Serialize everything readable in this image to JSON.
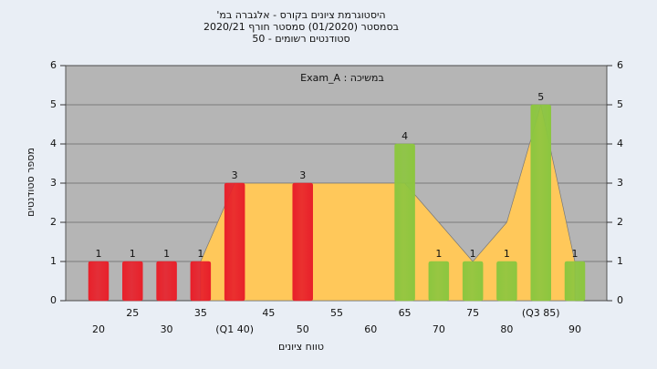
{
  "chart_data": {
    "type": "bar",
    "title": "היסטוגרמת ציונים בקורס - אלגברה במ'",
    "subtitle": "בסמסטר (01/2020) סמסטר חורף 2020/21",
    "subtitle2": "סטודנטים רשומים - 50",
    "annotation": "במשיכה : Exam_A",
    "x_label": "טווח ציונים",
    "y_label": "מספר סטודנטים",
    "categories": [
      "20",
      "25",
      "30",
      "35",
      "(Q1 40)",
      "45",
      "50",
      "55",
      "60",
      "65",
      "70",
      "75",
      "80",
      "(Q3 85)",
      "90"
    ],
    "values": [
      1,
      1,
      1,
      1,
      3,
      0,
      3,
      0,
      0,
      4,
      1,
      1,
      1,
      5,
      1
    ],
    "colors": [
      "#e8202a",
      "#e8202a",
      "#e8202a",
      "#e8202a",
      "#e8202a",
      "#e8202a",
      "#e8202a",
      "#e8202a",
      "#e8202a",
      "#8cc63f",
      "#8cc63f",
      "#8cc63f",
      "#8cc63f",
      "#8cc63f",
      "#8cc63f"
    ],
    "area": {
      "color": "#ffc85a",
      "values": [
        null,
        null,
        null,
        1,
        3,
        3,
        3,
        3,
        3,
        3,
        2,
        1,
        2,
        5,
        1
      ]
    },
    "ylim": [
      0,
      6
    ],
    "yticks": [
      0,
      1,
      2,
      3,
      4,
      5,
      6
    ],
    "y2lim": [
      0,
      6
    ],
    "y2ticks": [
      0,
      1,
      2,
      3,
      4,
      5,
      6
    ],
    "grid": true
  }
}
